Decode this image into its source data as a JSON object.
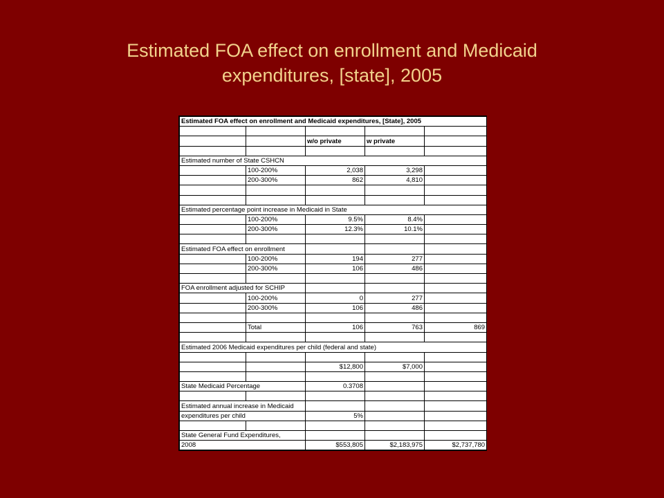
{
  "slide": {
    "title_line1": "Estimated FOA effect on enrollment and Medicaid",
    "title_line2": "expenditures,  [state], 2005"
  },
  "sheet": {
    "header": "Estimated  FOA effect on enrollment and Medicaid expenditures, [State], 2005",
    "col_wo": "w/o private",
    "col_w": "w private",
    "sec1": {
      "label": "Estimated number of State CSHCN",
      "rows": [
        {
          "band": "100-200%",
          "wo": "2,038",
          "w": "3,298"
        },
        {
          "band": "200-300%",
          "wo": "862",
          "w": "4,810"
        }
      ]
    },
    "sec2": {
      "label": "Estimated percentage point increase in Medicaid in State",
      "rows": [
        {
          "band": "100-200%",
          "wo": "9.5%",
          "w": "8.4%"
        },
        {
          "band": "200-300%",
          "wo": "12.3%",
          "w": "10.1%"
        }
      ]
    },
    "sec3": {
      "label": "Estimated FOA effect on enrollment",
      "rows": [
        {
          "band": "100-200%",
          "wo": "194",
          "w": "277"
        },
        {
          "band": "200-300%",
          "wo": "106",
          "w": "486"
        }
      ]
    },
    "sec4": {
      "label": "FOA enrollment adjusted for SCHIP",
      "rows": [
        {
          "band": "100-200%",
          "wo": "0",
          "w": "277"
        },
        {
          "band": "200-300%",
          "wo": "106",
          "w": "486"
        }
      ]
    },
    "total": {
      "label": "Total",
      "wo": "106",
      "w": "763",
      "sum": "869"
    },
    "sec5": {
      "label": "Estimated 2006 Medicaid expenditures per child (federal and state)",
      "wo": "$12,800",
      "w": "$7,000"
    },
    "state_pct": {
      "label": "State Medicaid Percentage",
      "value": "0.3708"
    },
    "increase": {
      "label_line1": "Estimated annual increase in Medicaid",
      "label_line2": "expenditures per child",
      "value": "5%"
    },
    "general_fund": {
      "label_line1": "State General Fund Expenditures,",
      "label_line2": "2008",
      "wo": "$553,805",
      "w": "$2,183,975",
      "sum": "$2,737,780"
    }
  }
}
